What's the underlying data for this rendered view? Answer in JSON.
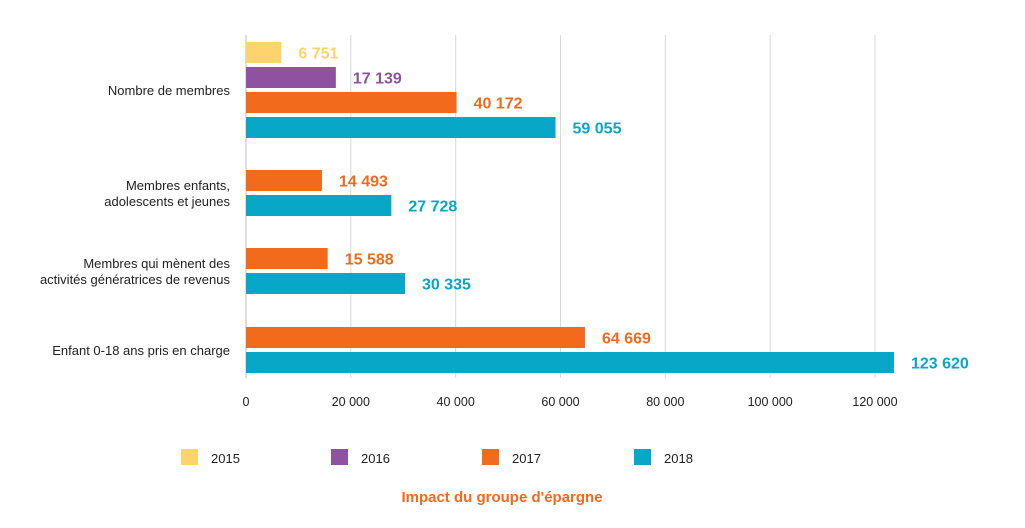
{
  "chart_data": {
    "type": "bar",
    "orientation": "horizontal",
    "title": "Impact du groupe d'épargne",
    "xlabel": "",
    "ylabel": "",
    "xlim": [
      0,
      120000
    ],
    "grid": true,
    "legend_position": "bottom",
    "x_ticks": [
      0,
      20000,
      40000,
      60000,
      80000,
      100000,
      120000
    ],
    "x_tick_labels": [
      "0",
      "20 000",
      "40 000",
      "60 000",
      "80 000",
      "100 000",
      "120 000"
    ],
    "series": [
      {
        "name": "2015",
        "color": "#fcd46b"
      },
      {
        "name": "2016",
        "color": "#8e52a1"
      },
      {
        "name": "2017",
        "color": "#f26b1d"
      },
      {
        "name": "2018",
        "color": "#08a7c8"
      }
    ],
    "categories": [
      {
        "label_lines": [
          "Nombre de membres"
        ],
        "bars": [
          {
            "series": "2015",
            "value": 6751,
            "label": "6 751"
          },
          {
            "series": "2016",
            "value": 17139,
            "label": "17 139"
          },
          {
            "series": "2017",
            "value": 40172,
            "label": "40 172"
          },
          {
            "series": "2018",
            "value": 59055,
            "label": "59 055"
          }
        ]
      },
      {
        "label_lines": [
          "Membres enfants,",
          "adolescents et jeunes"
        ],
        "bars": [
          {
            "series": "2017",
            "value": 14493,
            "label": "14 493"
          },
          {
            "series": "2018",
            "value": 27728,
            "label": "27 728"
          }
        ]
      },
      {
        "label_lines": [
          "Membres qui mènent des",
          "activités génératrices de revenus"
        ],
        "bars": [
          {
            "series": "2017",
            "value": 15588,
            "label": "15 588"
          },
          {
            "series": "2018",
            "value": 30335,
            "label": "30 335"
          }
        ]
      },
      {
        "label_lines": [
          "Enfant 0-18 ans pris en charge"
        ],
        "bars": [
          {
            "series": "2017",
            "value": 64669,
            "label": "64 669"
          },
          {
            "series": "2018",
            "value": 123620,
            "label": "123 620"
          }
        ]
      }
    ]
  }
}
